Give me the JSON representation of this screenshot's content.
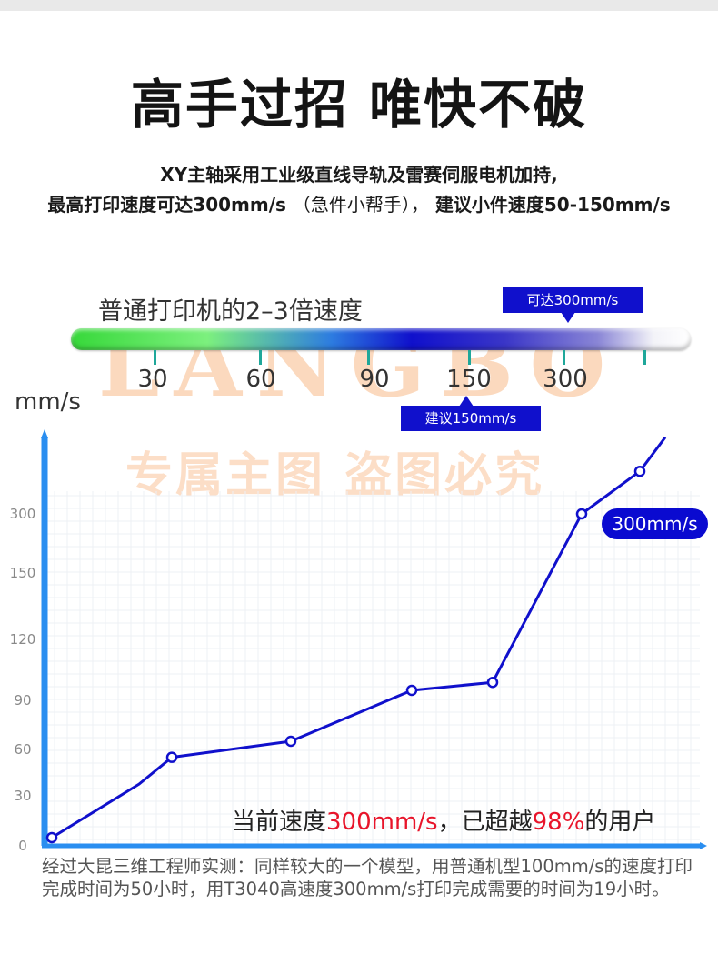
{
  "headline": "高手过招 唯快不破",
  "description": {
    "line1": "XY主轴采用工业级直线导轨及雷赛伺服电机加持,",
    "line2_a": "最高打印速度可达300mm/s",
    "line2_b": "（急件小帮手），",
    "line2_c": "建议小件速度50-150mm/s"
  },
  "speed_bar": {
    "caption": "普通打印机的2–3倍速度",
    "callout_top": "可达300mm/s",
    "callout_bottom": "建议150mm/s",
    "ticks": [
      "30",
      "60",
      "90",
      "150",
      "300"
    ]
  },
  "watermark": {
    "text1": "LANGBO",
    "text2": "专属主图 盗图必究"
  },
  "result_text": {
    "prefix": "当前速度",
    "speed": "300mm/s",
    "middle": "，已超越",
    "percent": "98%",
    "suffix": "的用户"
  },
  "note": "经过大昆三维工程师实测：同样较大的一个模型，用普通机型100mm/s的速度打印完成时间为50小时，用T3040高速度300mm/s打印完成需要的时间为19小时。",
  "colors": {
    "line": "#1010cc",
    "axis": "#2a8ef0",
    "accent_red": "#e8142a"
  },
  "chart_data": {
    "type": "line",
    "title": "",
    "xlabel": "",
    "ylabel": "mm/s",
    "y_ticks": [
      "0",
      "30",
      "60",
      "90",
      "120",
      "150",
      "300"
    ],
    "y_scale": "categorical-ticks",
    "grid": true,
    "series": [
      {
        "name": "",
        "points": [
          {
            "y": 5,
            "marker": true
          },
          {
            "y": 38,
            "marker": false
          },
          {
            "y": 55,
            "marker": true
          },
          {
            "y": 65,
            "marker": true
          },
          {
            "y": 95,
            "marker": true
          },
          {
            "y": 99,
            "marker": true
          },
          {
            "y": 300,
            "marker": true
          },
          {
            "y": 340,
            "marker": true
          },
          {
            "y": 372,
            "marker": false
          }
        ]
      }
    ],
    "annotation": "300mm/s"
  }
}
